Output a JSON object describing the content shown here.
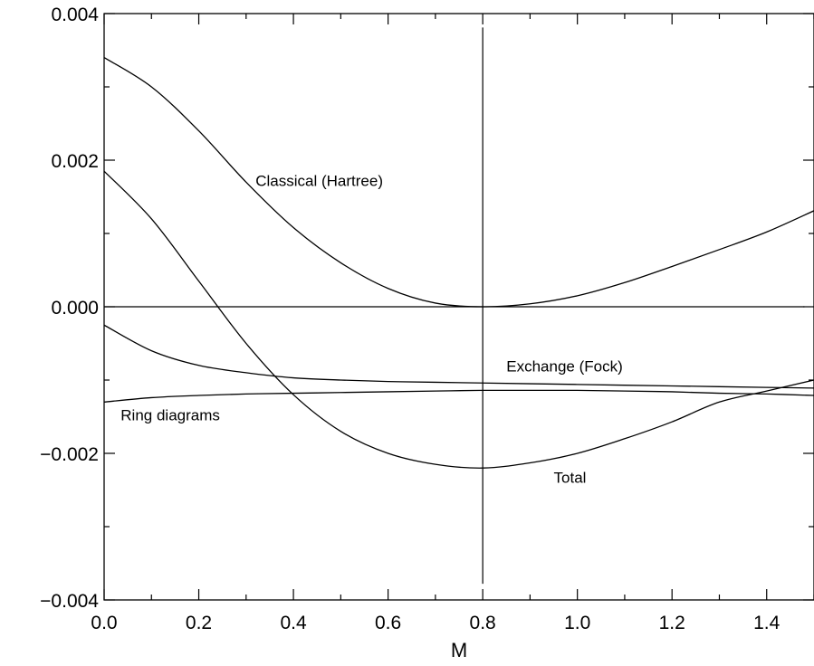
{
  "chart_data": {
    "type": "line",
    "xlabel": "M",
    "ylabel": "",
    "xlim": [
      0.0,
      1.5
    ],
    "ylim": [
      -0.004,
      0.004
    ],
    "x_ticks": [
      "0.0",
      "0.2",
      "0.4",
      "0.6",
      "0.8",
      "1.0",
      "1.2",
      "1.4"
    ],
    "x_tick_values": [
      0.0,
      0.2,
      0.4,
      0.6,
      0.8,
      1.0,
      1.2,
      1.4
    ],
    "y_ticks": [
      "0.004",
      "0.002",
      "0.000",
      "−0.002",
      "−0.004"
    ],
    "y_tick_values": [
      0.004,
      0.002,
      0.0,
      -0.002,
      -0.004
    ],
    "grid": false,
    "reference_lines": {
      "horizontal_y": 0.0,
      "vertical_x": 0.8
    },
    "series": [
      {
        "name": "Classical (Hartree)",
        "x": [
          0.0,
          0.1,
          0.2,
          0.3,
          0.4,
          0.5,
          0.6,
          0.7,
          0.8,
          0.9,
          1.0,
          1.1,
          1.2,
          1.3,
          1.4,
          1.5
        ],
        "y": [
          0.0034,
          0.003,
          0.0024,
          0.0017,
          0.00108,
          0.0006,
          0.00025,
          5e-05,
          0.0,
          4e-05,
          0.00015,
          0.00033,
          0.00055,
          0.00078,
          0.00102,
          0.00131
        ]
      },
      {
        "name": "Exchange (Fock)",
        "x": [
          0.0,
          0.1,
          0.2,
          0.3,
          0.4,
          0.5,
          0.6,
          0.7,
          0.8,
          0.9,
          1.0,
          1.1,
          1.2,
          1.3,
          1.4,
          1.5
        ],
        "y": [
          -0.00025,
          -0.0006,
          -0.0008,
          -0.0009,
          -0.00097,
          -0.001,
          -0.00102,
          -0.00103,
          -0.00104,
          -0.00105,
          -0.00106,
          -0.00107,
          -0.00108,
          -0.00109,
          -0.0011,
          -0.00111
        ]
      },
      {
        "name": "Ring diagrams",
        "x": [
          0.0,
          0.1,
          0.2,
          0.3,
          0.4,
          0.5,
          0.6,
          0.7,
          0.8,
          0.9,
          1.0,
          1.1,
          1.2,
          1.3,
          1.4,
          1.5
        ],
        "y": [
          -0.0013,
          -0.00124,
          -0.00121,
          -0.00119,
          -0.00118,
          -0.00117,
          -0.00116,
          -0.00115,
          -0.00114,
          -0.00114,
          -0.00114,
          -0.00115,
          -0.00116,
          -0.00118,
          -0.00119,
          -0.00121
        ]
      },
      {
        "name": "Total",
        "x": [
          0.0,
          0.1,
          0.2,
          0.3,
          0.4,
          0.5,
          0.6,
          0.7,
          0.8,
          0.9,
          1.0,
          1.1,
          1.2,
          1.3,
          1.4,
          1.5
        ],
        "y": [
          0.00185,
          0.0012,
          0.00035,
          -0.0005,
          -0.0012,
          -0.0017,
          -0.002,
          -0.00215,
          -0.0022,
          -0.00213,
          -0.002,
          -0.0018,
          -0.00157,
          -0.0013,
          -0.00115,
          -0.001
        ]
      }
    ],
    "annotations": [
      {
        "text": "Classical (Hartree)",
        "x": 0.32,
        "y": 0.00165
      },
      {
        "text": "Exchange (Fock)",
        "x": 0.85,
        "y": -0.00088
      },
      {
        "text": "Ring diagrams",
        "x": 0.035,
        "y": -0.00155
      },
      {
        "text": "Total",
        "x": 0.95,
        "y": -0.0024
      }
    ]
  }
}
